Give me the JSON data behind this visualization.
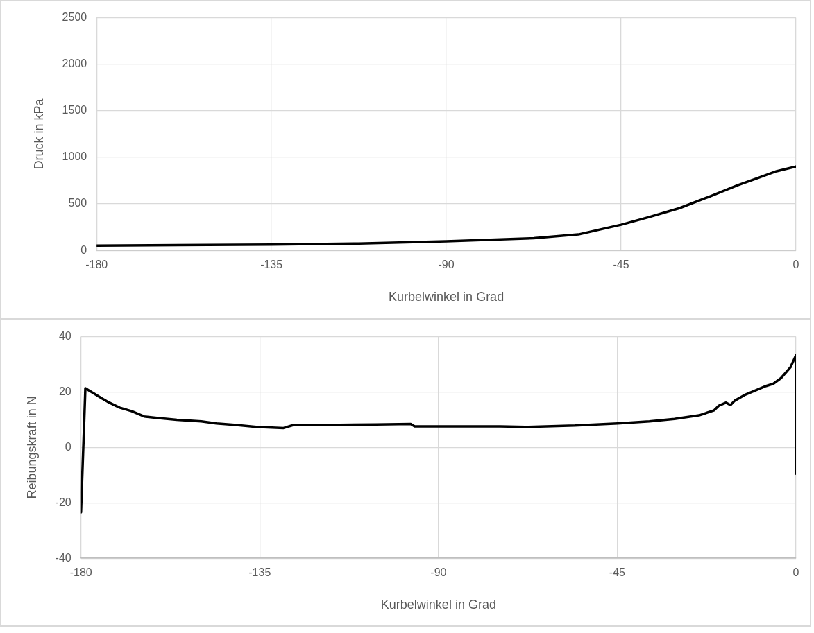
{
  "chart_data": [
    {
      "type": "line",
      "xlabel": "Kurbelwinkel in Grad",
      "ylabel": "Druck in kPa",
      "xlim": [
        -180,
        0
      ],
      "xticks": [
        -180,
        -135,
        -90,
        -45,
        0
      ],
      "ylim": [
        0,
        2500
      ],
      "yticks": [
        0,
        500,
        1000,
        1500,
        2000,
        2500
      ],
      "grid": true,
      "series": [
        {
          "color": "#000000",
          "x": [
            -180,
            -135,
            -112.5,
            -90,
            -67.5,
            -56,
            -45,
            -38,
            -30,
            -22.5,
            -15,
            -10,
            -5,
            0
          ],
          "values": [
            52,
            63,
            75,
            98,
            132,
            172,
            276,
            356,
            454,
            575,
            701,
            776,
            851,
            902
          ]
        }
      ]
    },
    {
      "type": "line",
      "xlabel": "Kurbelwinkel in Grad",
      "ylabel": "Reibungskraft in N",
      "xlim": [
        -180,
        0
      ],
      "xticks": [
        -180,
        -135,
        -90,
        -45,
        0
      ],
      "ylim": [
        -40,
        40
      ],
      "yticks": [
        -40,
        -20,
        0,
        20,
        40
      ],
      "grid": true,
      "series": [
        {
          "color": "#000000",
          "x": [
            -180,
            -178.9,
            -177.2,
            -174.7,
            -172.9,
            -170.3,
            -167.2,
            -164.1,
            -160.9,
            -155.9,
            -149.7,
            -145.9,
            -140.9,
            -135.9,
            -129,
            -126.5,
            -118.3,
            -105.8,
            -97,
            -96,
            -87,
            -74.5,
            -68.2,
            -55.7,
            -44.9,
            -36.9,
            -30.6,
            -24.4,
            -20.6,
            -19.4,
            -17.6,
            -16.5,
            -15.4,
            -13,
            -10.5,
            -7.5,
            -5.7,
            -3.8,
            -1.4,
            0,
            0
          ],
          "values": [
            -23.4,
            21.4,
            19.9,
            17.7,
            16.2,
            14.4,
            13.1,
            11.2,
            10.7,
            10,
            9.4,
            8.7,
            8.1,
            7.4,
            7,
            8.1,
            8.1,
            8.3,
            8.5,
            7.6,
            7.6,
            7.6,
            7.4,
            7.9,
            8.7,
            9.4,
            10.3,
            11.6,
            13.4,
            15.1,
            16.2,
            15.3,
            16.9,
            18.9,
            20.4,
            22.2,
            23,
            25,
            28.9,
            33.3,
            -9.5
          ]
        }
      ]
    }
  ]
}
